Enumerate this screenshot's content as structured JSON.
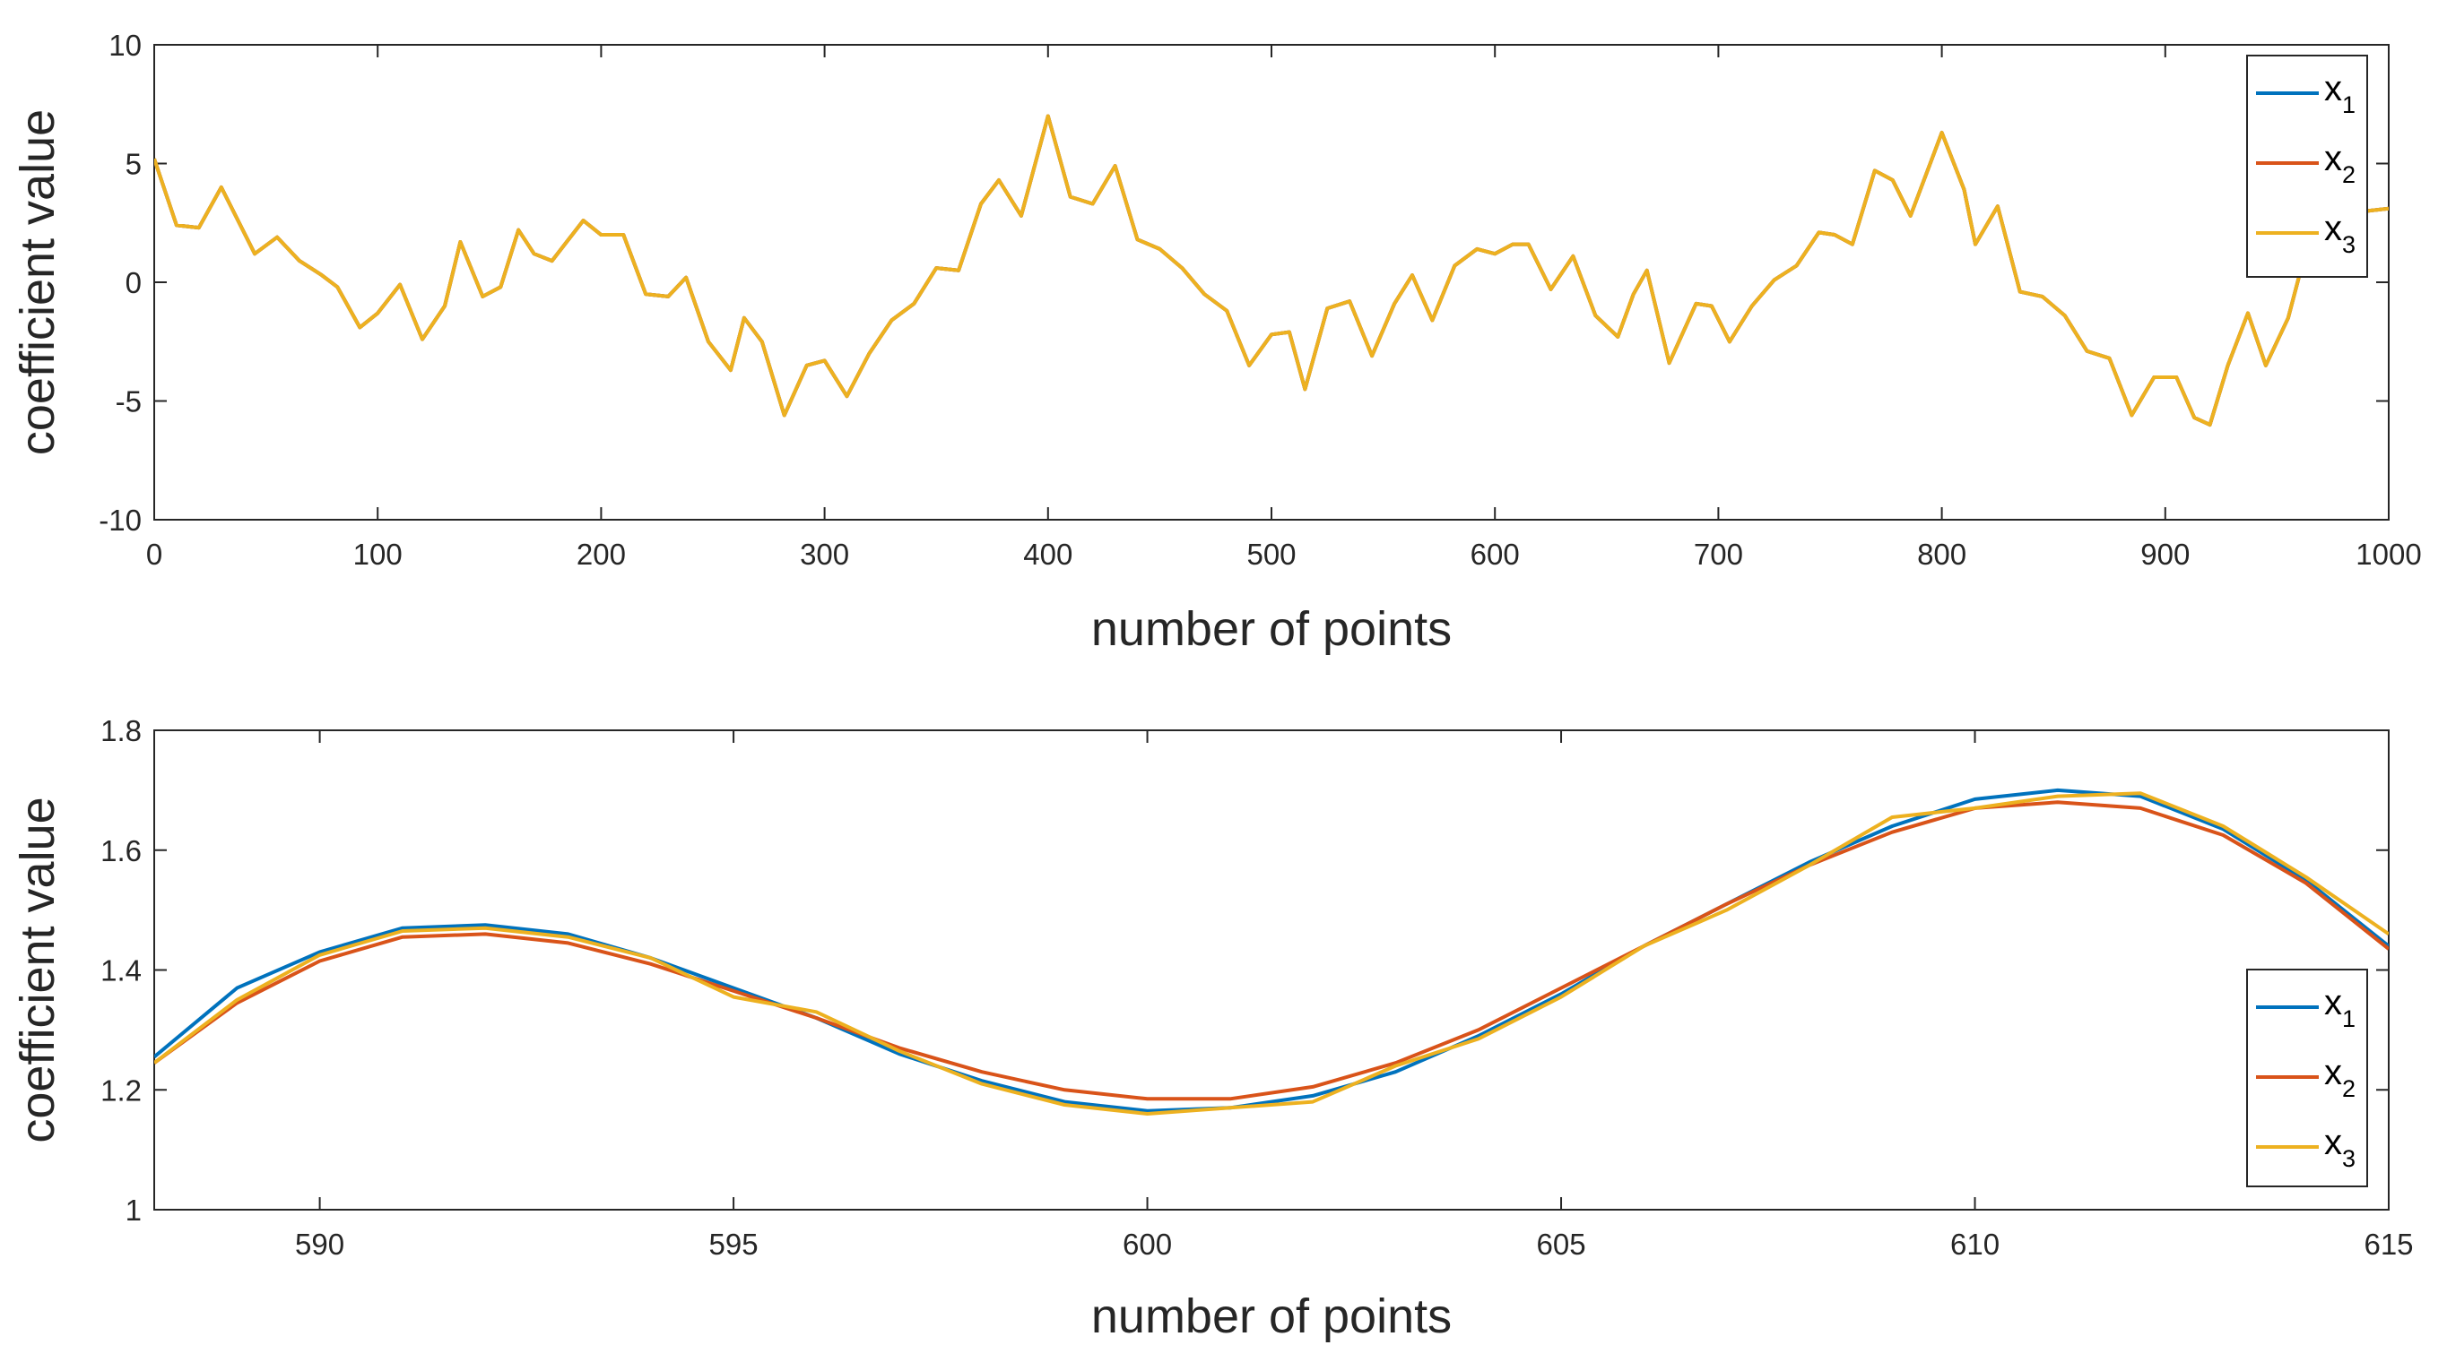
{
  "chart_data": [
    {
      "type": "line",
      "xlabel": "number of points",
      "ylabel": "coefficient value",
      "xlim": [
        0,
        1000
      ],
      "ylim": [
        -10,
        10
      ],
      "xticks": [
        "0",
        "100",
        "200",
        "300",
        "400",
        "500",
        "600",
        "700",
        "800",
        "900",
        "1000"
      ],
      "yticks": [
        "10",
        "5",
        "0",
        "-5",
        "-10"
      ],
      "grid": false,
      "legend_position": "top-right",
      "legend": [
        {
          "base": "x",
          "sub": "1"
        },
        {
          "base": "x",
          "sub": "2"
        },
        {
          "base": "x",
          "sub": "3"
        }
      ],
      "series": [
        {
          "color": "#0072BD",
          "x": [
            0,
            10,
            20,
            30,
            45,
            55,
            65,
            75,
            82,
            92,
            100,
            110,
            120,
            130,
            137,
            147,
            155,
            163,
            170,
            178,
            192,
            200,
            210,
            220,
            230,
            238,
            248,
            258,
            264,
            272,
            282,
            292,
            300,
            310,
            320,
            330,
            340,
            350,
            360,
            370,
            378,
            388,
            400,
            410,
            420,
            430,
            440,
            450,
            460,
            470,
            480,
            490,
            500,
            508,
            515,
            525,
            535,
            545,
            555,
            563,
            572,
            582,
            592,
            600,
            608,
            615,
            625,
            635,
            645,
            655,
            662,
            668,
            678,
            690,
            697,
            705,
            715,
            725,
            735,
            745,
            752,
            760,
            770,
            778,
            786,
            800,
            810,
            815,
            825,
            835,
            845,
            855,
            865,
            875,
            885,
            895,
            905,
            913,
            920,
            928,
            937,
            945,
            955,
            962,
            970,
            980,
            990,
            1000
          ],
          "y": [
            5.2,
            2.4,
            2.3,
            4.0,
            1.2,
            1.9,
            0.9,
            0.3,
            -0.2,
            -1.9,
            -1.3,
            -0.1,
            -2.4,
            -1.0,
            1.7,
            -0.6,
            -0.2,
            2.2,
            1.2,
            0.9,
            2.6,
            2.0,
            2.0,
            -0.5,
            -0.6,
            0.2,
            -2.5,
            -3.7,
            -1.5,
            -2.5,
            -5.6,
            -3.5,
            -3.3,
            -4.8,
            -3.0,
            -1.6,
            -0.9,
            0.6,
            0.5,
            3.3,
            4.3,
            2.8,
            7.0,
            3.6,
            3.3,
            4.9,
            1.8,
            1.4,
            0.6,
            -0.5,
            -1.2,
            -3.5,
            -2.2,
            -2.1,
            -4.5,
            -1.1,
            -0.8,
            -3.1,
            -0.9,
            0.3,
            -1.6,
            0.7,
            1.4,
            1.2,
            1.6,
            1.6,
            -0.3,
            1.1,
            -1.4,
            -2.3,
            -0.5,
            0.5,
            -3.4,
            -0.9,
            -1.0,
            -2.5,
            -1.0,
            0.1,
            0.7,
            2.1,
            2.0,
            1.6,
            4.7,
            4.3,
            2.8,
            6.3,
            3.9,
            1.6,
            3.2,
            -0.4,
            -0.6,
            -1.4,
            -2.9,
            -3.2,
            -5.6,
            -4.0,
            -4.0,
            -5.7,
            -6.0,
            -3.5,
            -1.3,
            -3.5,
            -1.5,
            1.0,
            0.3,
            2.0,
            3.0,
            3.1
          ]
        },
        {
          "color": "#D95319",
          "x": [
            0,
            10,
            20,
            30,
            45,
            55,
            65,
            75,
            82,
            92,
            100,
            110,
            120,
            130,
            137,
            147,
            155,
            163,
            170,
            178,
            192,
            200,
            210,
            220,
            230,
            238,
            248,
            258,
            264,
            272,
            282,
            292,
            300,
            310,
            320,
            330,
            340,
            350,
            360,
            370,
            378,
            388,
            400,
            410,
            420,
            430,
            440,
            450,
            460,
            470,
            480,
            490,
            500,
            508,
            515,
            525,
            535,
            545,
            555,
            563,
            572,
            582,
            592,
            600,
            608,
            615,
            625,
            635,
            645,
            655,
            662,
            668,
            678,
            690,
            697,
            705,
            715,
            725,
            735,
            745,
            752,
            760,
            770,
            778,
            786,
            800,
            810,
            815,
            825,
            835,
            845,
            855,
            865,
            875,
            885,
            895,
            905,
            913,
            920,
            928,
            937,
            945,
            955,
            962,
            970,
            980,
            990,
            1000
          ],
          "y": [
            5.2,
            2.4,
            2.3,
            4.0,
            1.2,
            1.9,
            0.9,
            0.3,
            -0.2,
            -1.9,
            -1.3,
            -0.1,
            -2.4,
            -1.0,
            1.7,
            -0.6,
            -0.2,
            2.2,
            1.2,
            0.9,
            2.6,
            2.0,
            2.0,
            -0.5,
            -0.6,
            0.2,
            -2.5,
            -3.7,
            -1.5,
            -2.5,
            -5.6,
            -3.5,
            -3.3,
            -4.8,
            -3.0,
            -1.6,
            -0.9,
            0.6,
            0.5,
            3.3,
            4.3,
            2.8,
            7.0,
            3.6,
            3.3,
            4.9,
            1.8,
            1.4,
            0.6,
            -0.5,
            -1.2,
            -3.5,
            -2.2,
            -2.1,
            -4.5,
            -1.1,
            -0.8,
            -3.1,
            -0.9,
            0.3,
            -1.6,
            0.7,
            1.4,
            1.2,
            1.6,
            1.6,
            -0.3,
            1.1,
            -1.4,
            -2.3,
            -0.5,
            0.5,
            -3.4,
            -0.9,
            -1.0,
            -2.5,
            -1.0,
            0.1,
            0.7,
            2.1,
            2.0,
            1.6,
            4.7,
            4.3,
            2.8,
            6.3,
            3.9,
            1.6,
            3.2,
            -0.4,
            -0.6,
            -1.4,
            -2.9,
            -3.2,
            -5.6,
            -4.0,
            -4.0,
            -5.7,
            -6.0,
            -3.5,
            -1.3,
            -3.5,
            -1.5,
            1.0,
            0.3,
            2.0,
            3.0,
            3.1
          ]
        },
        {
          "color": "#EDB120",
          "x": [
            0,
            10,
            20,
            30,
            45,
            55,
            65,
            75,
            82,
            92,
            100,
            110,
            120,
            130,
            137,
            147,
            155,
            163,
            170,
            178,
            192,
            200,
            210,
            220,
            230,
            238,
            248,
            258,
            264,
            272,
            282,
            292,
            300,
            310,
            320,
            330,
            340,
            350,
            360,
            370,
            378,
            388,
            400,
            410,
            420,
            430,
            440,
            450,
            460,
            470,
            480,
            490,
            500,
            508,
            515,
            525,
            535,
            545,
            555,
            563,
            572,
            582,
            592,
            600,
            608,
            615,
            625,
            635,
            645,
            655,
            662,
            668,
            678,
            690,
            697,
            705,
            715,
            725,
            735,
            745,
            752,
            760,
            770,
            778,
            786,
            800,
            810,
            815,
            825,
            835,
            845,
            855,
            865,
            875,
            885,
            895,
            905,
            913,
            920,
            928,
            937,
            945,
            955,
            962,
            970,
            980,
            990,
            1000
          ],
          "y": [
            5.2,
            2.4,
            2.3,
            4.0,
            1.2,
            1.9,
            0.9,
            0.3,
            -0.2,
            -1.9,
            -1.3,
            -0.1,
            -2.4,
            -1.0,
            1.7,
            -0.6,
            -0.2,
            2.2,
            1.2,
            0.9,
            2.6,
            2.0,
            2.0,
            -0.5,
            -0.6,
            0.2,
            -2.5,
            -3.7,
            -1.5,
            -2.5,
            -5.6,
            -3.5,
            -3.3,
            -4.8,
            -3.0,
            -1.6,
            -0.9,
            0.6,
            0.5,
            3.3,
            4.3,
            2.8,
            7.0,
            3.6,
            3.3,
            4.9,
            1.8,
            1.4,
            0.6,
            -0.5,
            -1.2,
            -3.5,
            -2.2,
            -2.1,
            -4.5,
            -1.1,
            -0.8,
            -3.1,
            -0.9,
            0.3,
            -1.6,
            0.7,
            1.4,
            1.2,
            1.6,
            1.6,
            -0.3,
            1.1,
            -1.4,
            -2.3,
            -0.5,
            0.5,
            -3.4,
            -0.9,
            -1.0,
            -2.5,
            -1.0,
            0.1,
            0.7,
            2.1,
            2.0,
            1.6,
            4.7,
            4.3,
            2.8,
            6.3,
            3.9,
            1.6,
            3.2,
            -0.4,
            -0.6,
            -1.4,
            -2.9,
            -3.2,
            -5.6,
            -4.0,
            -4.0,
            -5.7,
            -6.0,
            -3.5,
            -1.3,
            -3.5,
            -1.5,
            1.0,
            0.3,
            2.0,
            3.0,
            3.1
          ]
        }
      ]
    },
    {
      "type": "line",
      "xlabel": "number of points",
      "ylabel": "coefficient value",
      "xlim": [
        588,
        615
      ],
      "ylim": [
        1,
        1.8
      ],
      "xticks": [
        "590",
        "595",
        "600",
        "605",
        "610",
        "615"
      ],
      "yticks": [
        "1.8",
        "1.6",
        "1.4",
        "1.2",
        "1"
      ],
      "grid": false,
      "legend_position": "bottom-right",
      "legend": [
        {
          "base": "x",
          "sub": "1"
        },
        {
          "base": "x",
          "sub": "2"
        },
        {
          "base": "x",
          "sub": "3"
        }
      ],
      "series": [
        {
          "color": "#0072BD",
          "x": [
            588,
            589,
            590,
            591,
            592,
            593,
            594,
            595,
            596,
            597,
            598,
            599,
            600,
            601,
            602,
            603,
            604,
            605,
            606,
            607,
            608,
            609,
            610,
            611,
            612,
            613,
            614,
            615
          ],
          "y": [
            1.255,
            1.37,
            1.43,
            1.47,
            1.475,
            1.46,
            1.42,
            1.37,
            1.32,
            1.26,
            1.215,
            1.18,
            1.165,
            1.17,
            1.19,
            1.23,
            1.29,
            1.36,
            1.44,
            1.51,
            1.58,
            1.64,
            1.685,
            1.7,
            1.69,
            1.635,
            1.55,
            1.44
          ]
        },
        {
          "color": "#D95319",
          "x": [
            588,
            589,
            590,
            591,
            592,
            593,
            594,
            595,
            596,
            597,
            598,
            599,
            600,
            601,
            602,
            603,
            604,
            605,
            606,
            607,
            608,
            609,
            610,
            611,
            612,
            613,
            614,
            615
          ],
          "y": [
            1.245,
            1.345,
            1.415,
            1.455,
            1.46,
            1.445,
            1.41,
            1.365,
            1.32,
            1.27,
            1.23,
            1.2,
            1.185,
            1.185,
            1.205,
            1.245,
            1.3,
            1.37,
            1.44,
            1.51,
            1.575,
            1.63,
            1.67,
            1.68,
            1.67,
            1.625,
            1.545,
            1.435
          ]
        },
        {
          "color": "#EDB120",
          "x": [
            588,
            589,
            590,
            591,
            592,
            593,
            594,
            595,
            596,
            597,
            598,
            599,
            600,
            601,
            602,
            603,
            604,
            605,
            606,
            607,
            608,
            609,
            610,
            611,
            612,
            613,
            614,
            615
          ],
          "y": [
            1.245,
            1.35,
            1.425,
            1.465,
            1.47,
            1.455,
            1.42,
            1.355,
            1.33,
            1.265,
            1.21,
            1.175,
            1.16,
            1.17,
            1.18,
            1.24,
            1.285,
            1.355,
            1.44,
            1.5,
            1.575,
            1.655,
            1.67,
            1.69,
            1.695,
            1.64,
            1.555,
            1.46
          ]
        }
      ]
    }
  ]
}
